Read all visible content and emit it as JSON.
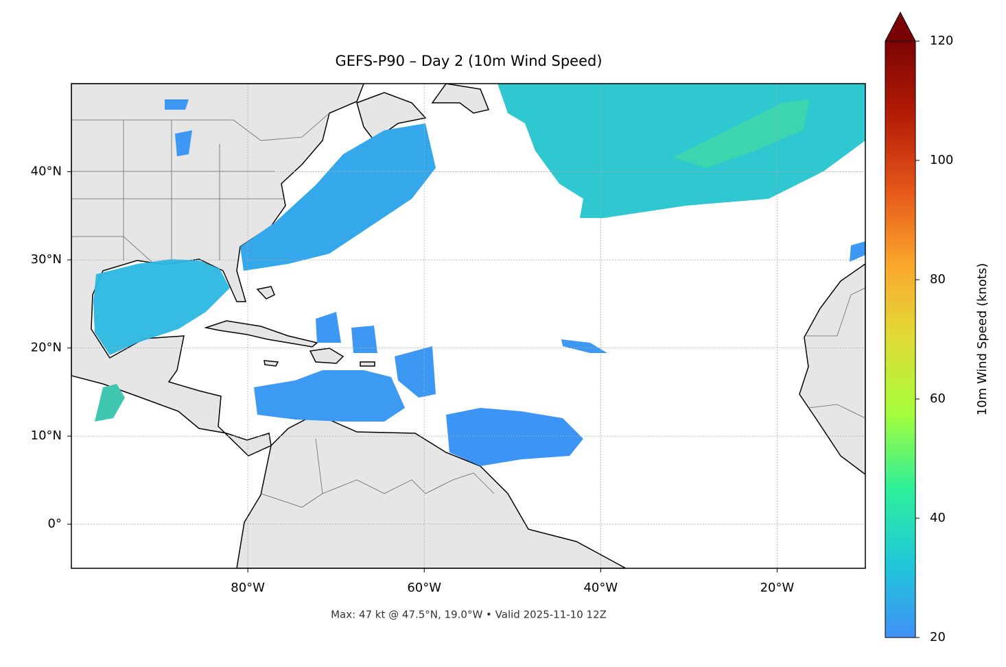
{
  "map": {
    "title": "GEFS-P90 – Day 2 (10m Wind Speed)",
    "lon_range": [
      -100,
      -10
    ],
    "lat_range": [
      -5,
      50
    ],
    "lon_ticks": [
      {
        "value": -80,
        "label": "80°W"
      },
      {
        "value": -60,
        "label": "60°W"
      },
      {
        "value": -40,
        "label": "40°W"
      },
      {
        "value": -20,
        "label": "20°W"
      }
    ],
    "lat_ticks": [
      {
        "value": 0,
        "label": "0°"
      },
      {
        "value": 10,
        "label": "10°N"
      },
      {
        "value": 20,
        "label": "20°N"
      },
      {
        "value": 30,
        "label": "30°N"
      },
      {
        "value": 40,
        "label": "40°N"
      }
    ],
    "grid": true,
    "footer": "Max: 47 kt @ 47.5°N, 19.0°W • Valid 2025-11-10 12Z"
  },
  "colorbar": {
    "label": "10m Wind Speed (knots)",
    "range": [
      20,
      120
    ],
    "ticks": [
      20,
      40,
      60,
      80,
      100,
      120
    ],
    "extend": "max",
    "colormap": [
      "#4190f7",
      "#1fc8d8",
      "#2ff09a",
      "#a4fc3c",
      "#e0dd37",
      "#fba72c",
      "#e6561a",
      "#b51b06",
      "#7a0403"
    ]
  }
}
